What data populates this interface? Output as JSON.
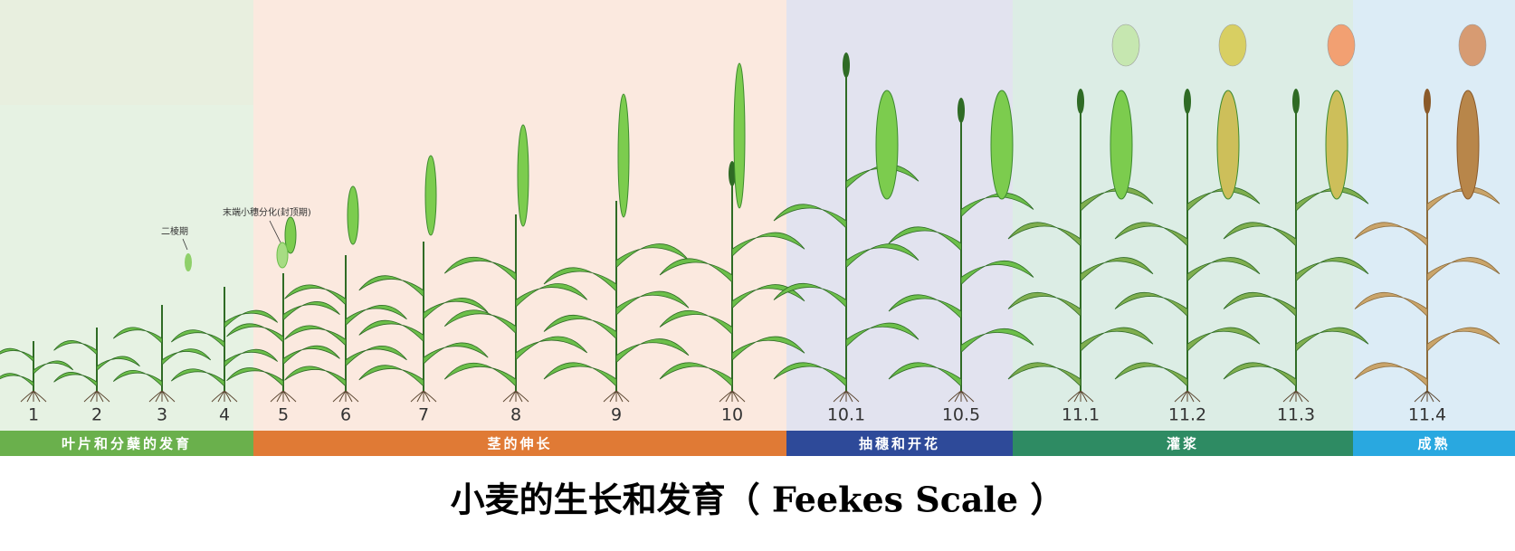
{
  "title": "小麦的生长和发育（ Feekes Scale ）",
  "annotations": [
    "二棱期",
    "末端小穗分化(封顶期)"
  ],
  "phases": [
    {
      "label": "叶片和分蘖的发育",
      "stages": [
        "1",
        "2",
        "3",
        "4"
      ]
    },
    {
      "label": "茎的伸长",
      "stages": [
        "5",
        "6",
        "7",
        "8",
        "9",
        "10"
      ]
    },
    {
      "label": "抽穗和开花",
      "stages": [
        "10.1",
        "10.5"
      ]
    },
    {
      "label": "灌浆",
      "stages": [
        "11.1",
        "11.2",
        "11.3"
      ]
    },
    {
      "label": "成熟",
      "stages": [
        "11.4"
      ]
    }
  ]
}
